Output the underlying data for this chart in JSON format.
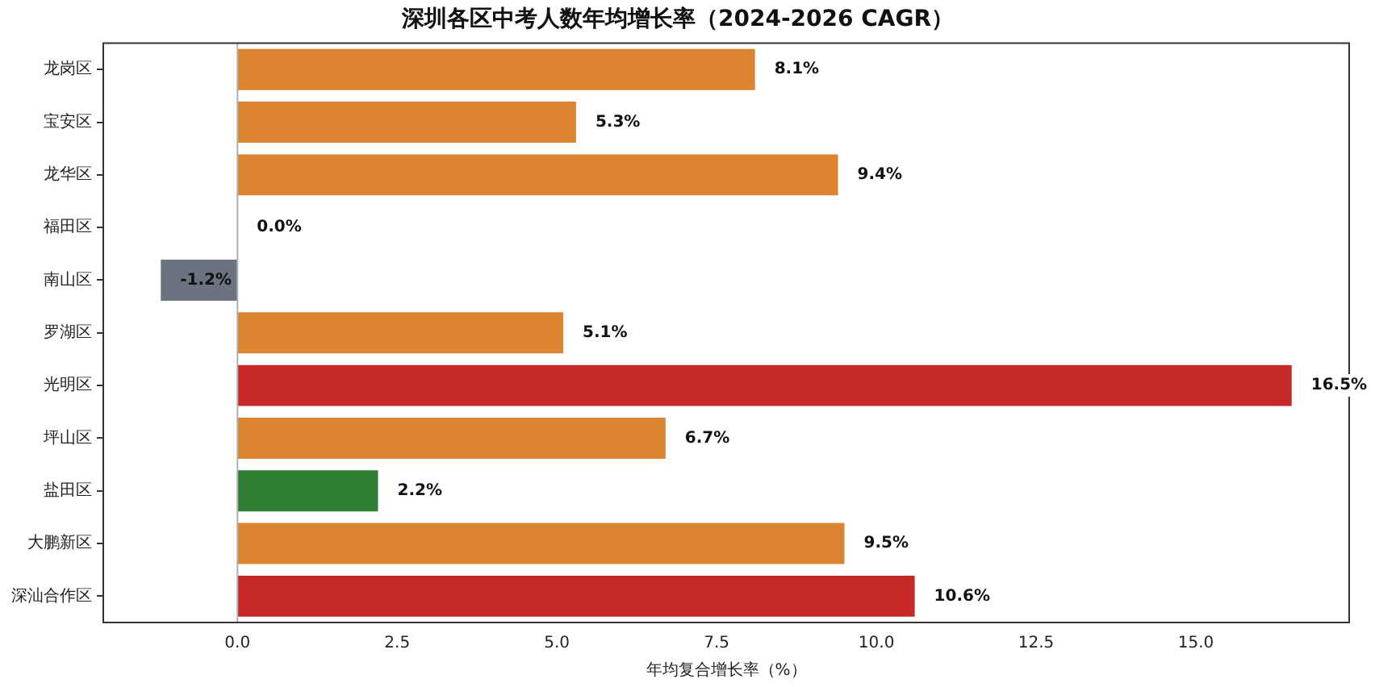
{
  "chart_data": {
    "type": "bar",
    "orientation": "horizontal",
    "title": "深圳各区中考人数年均增长率（2024-2026 CAGR）",
    "xlabel": "年均复合增长率（%）",
    "categories": [
      "龙岗区",
      "宝安区",
      "龙华区",
      "福田区",
      "南山区",
      "罗湖区",
      "光明区",
      "坪山区",
      "盐田区",
      "大鹏新区",
      "深汕合作区"
    ],
    "values": [
      8.1,
      5.3,
      9.4,
      0.0,
      -1.2,
      5.1,
      16.5,
      6.7,
      2.2,
      9.5,
      10.6
    ],
    "colors": [
      "#dc8430",
      "#dc8430",
      "#dc8430",
      "#dc8430",
      "#6b7280",
      "#dc8430",
      "#c62828",
      "#dc8430",
      "#2e7d32",
      "#dc8430",
      "#c62828"
    ],
    "value_labels": [
      "8.1%",
      "5.3%",
      "9.4%",
      "0.0%",
      "-1.2%",
      "5.1%",
      "16.5%",
      "6.7%",
      "2.2%",
      "9.5%",
      "10.6%"
    ],
    "xlim": [
      -2.1,
      17.4
    ],
    "xticks": [
      {
        "value": 0,
        "label": "0.0"
      },
      2.5,
      {
        "value": 5,
        "label": "5.0"
      },
      7.5,
      {
        "value": 10,
        "label": "10.0"
      },
      12.5,
      {
        "value": 15,
        "label": "15.0"
      }
    ],
    "ref_lines": [
      {
        "axis": "x",
        "value": 0,
        "color": "#b0b0b0"
      }
    ],
    "grid": false,
    "legend": false
  }
}
